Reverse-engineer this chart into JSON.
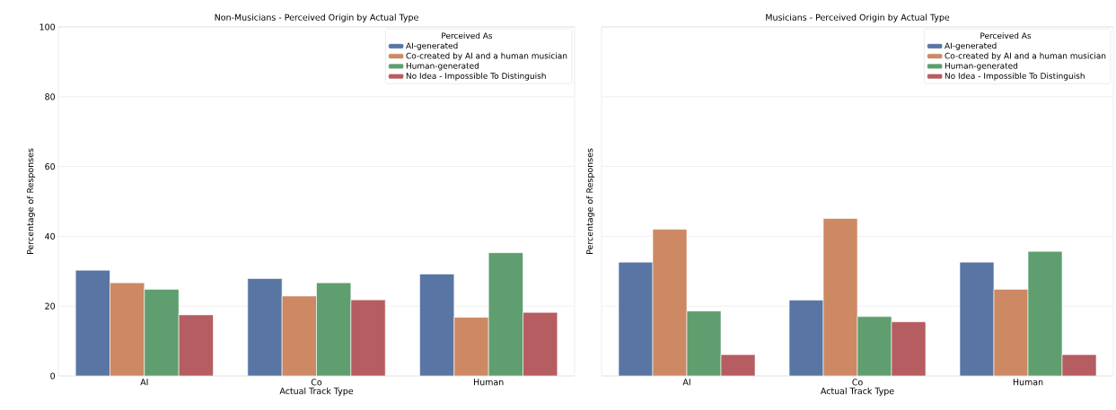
{
  "chart_data": [
    {
      "type": "bar",
      "title": "Non-Musicians - Perceived Origin by Actual Type",
      "xlabel": "Actual Track Type",
      "ylabel": "Percentage of Responses",
      "legend_title": "Perceived As",
      "legend": "top right",
      "grid": "y",
      "categories": [
        "AI",
        "Co",
        "Human"
      ],
      "ylim": [
        0,
        100
      ],
      "yticks": [
        0,
        20,
        40,
        60,
        80,
        100
      ],
      "series": [
        {
          "name": "AI-generated",
          "color": "#5975a4",
          "values": [
            30.3,
            27.9,
            29.2
          ]
        },
        {
          "name": "Co-created by AI and a human musician",
          "color": "#cc8963",
          "values": [
            26.7,
            22.9,
            16.8
          ]
        },
        {
          "name": "Human-generated",
          "color": "#5f9e6e",
          "values": [
            24.8,
            26.7,
            35.3
          ]
        },
        {
          "name": "No Idea - Impossible To Distinguish",
          "color": "#b55d60",
          "values": [
            17.5,
            21.8,
            18.2
          ]
        }
      ]
    },
    {
      "type": "bar",
      "title": "Musicians - Perceived Origin by Actual Type",
      "xlabel": "Actual Track Type",
      "ylabel": "Percentage of Responses",
      "legend_title": "Perceived As",
      "legend": "top right",
      "grid": "y",
      "tick_labels": "x",
      "categories": [
        "AI",
        "Co",
        "Human"
      ],
      "ylim": [
        0,
        100
      ],
      "yticks": [
        0,
        20,
        40,
        60,
        80,
        100
      ],
      "series": [
        {
          "name": "AI-generated",
          "color": "#5975a4",
          "values": [
            32.6,
            21.7,
            32.6
          ]
        },
        {
          "name": "Co-created by AI and a human musician",
          "color": "#cc8963",
          "values": [
            42.0,
            45.1,
            24.8
          ]
        },
        {
          "name": "Human-generated",
          "color": "#5f9e6e",
          "values": [
            18.6,
            17.0,
            35.7
          ]
        },
        {
          "name": "No Idea - Impossible To Distinguish",
          "color": "#b55d60",
          "values": [
            6.1,
            15.5,
            6.1
          ]
        }
      ]
    }
  ]
}
